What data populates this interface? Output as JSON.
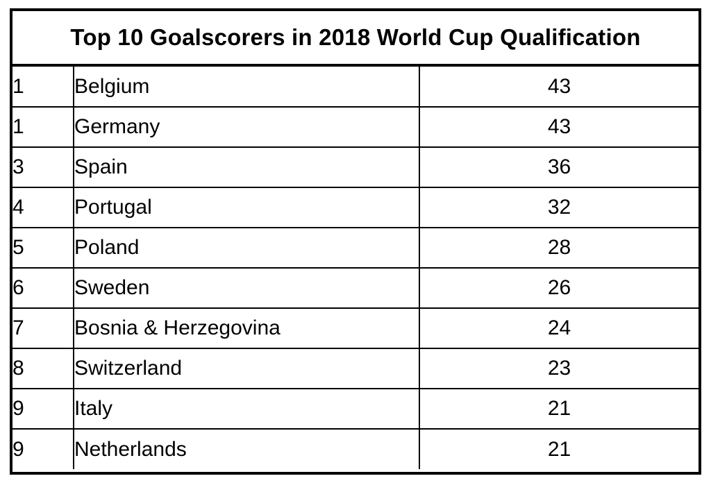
{
  "chart_data": {
    "type": "table",
    "title": "Top 10 Goalscorers in 2018 World Cup Qualification",
    "rows": [
      {
        "rank": "1",
        "team": "Belgium",
        "goals": 43
      },
      {
        "rank": "1",
        "team": "Germany",
        "goals": 43
      },
      {
        "rank": "3",
        "team": "Spain",
        "goals": 36
      },
      {
        "rank": "4",
        "team": "Portugal",
        "goals": 32
      },
      {
        "rank": "5",
        "team": "Poland",
        "goals": 28
      },
      {
        "rank": "6",
        "team": "Sweden",
        "goals": 26
      },
      {
        "rank": "7",
        "team": "Bosnia & Herzegovina",
        "goals": 24
      },
      {
        "rank": "8",
        "team": "Switzerland",
        "goals": 23
      },
      {
        "rank": "9",
        "team": "Italy",
        "goals": 21
      },
      {
        "rank": "9",
        "team": "Netherlands",
        "goals": 21
      }
    ]
  }
}
